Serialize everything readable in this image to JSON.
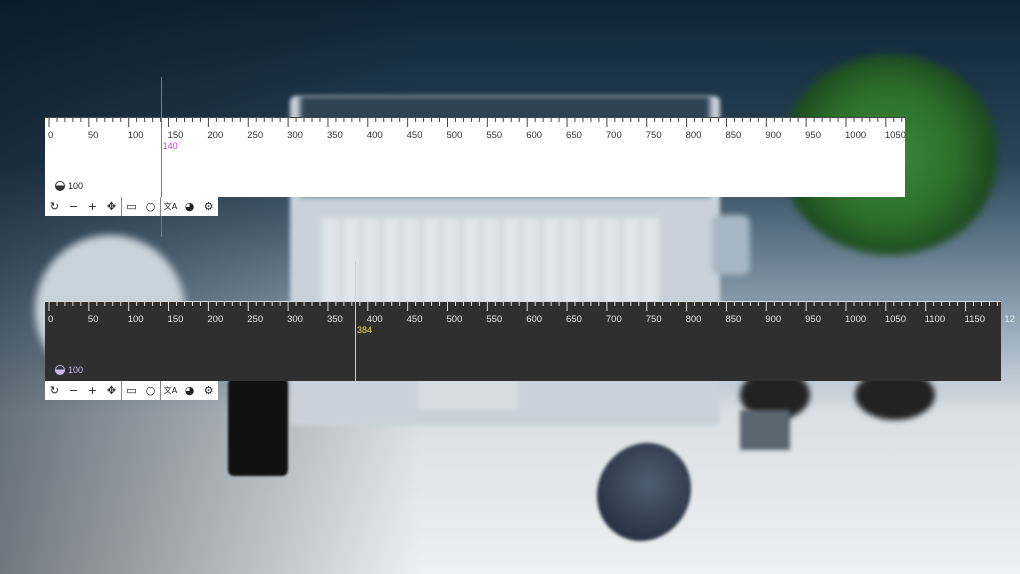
{
  "rulers": [
    {
      "theme": "light",
      "tick_labels": [
        "0",
        "50",
        "100",
        "150",
        "200",
        "250",
        "300",
        "350",
        "400",
        "450",
        "500",
        "550",
        "600",
        "650",
        "700",
        "750",
        "800",
        "850",
        "900",
        "950",
        "1000",
        "1050"
      ],
      "cursor_value": "140",
      "cursor_color": "#d43bd4",
      "opacity_value": "100"
    },
    {
      "theme": "dark",
      "tick_labels": [
        "0",
        "50",
        "100",
        "150",
        "200",
        "250",
        "300",
        "350",
        "400",
        "450",
        "500",
        "550",
        "600",
        "650",
        "700",
        "750",
        "800",
        "850",
        "900",
        "950",
        "1000",
        "1050",
        "1100",
        "1150",
        "12"
      ],
      "cursor_value": "384",
      "cursor_color": "#e0e04a",
      "opacity_value": "100"
    }
  ],
  "toolbar": {
    "buttons": [
      {
        "name": "rotate-icon",
        "glyph": "↻"
      },
      {
        "name": "minus-icon",
        "glyph": "−"
      },
      {
        "name": "plus-icon",
        "glyph": "+"
      },
      {
        "name": "move-icon",
        "glyph": "✥"
      },
      {
        "name": "ruler-icon",
        "glyph": "▭"
      },
      {
        "name": "circle-icon",
        "glyph": "○"
      },
      {
        "name": "translate-icon",
        "glyph": "文A"
      },
      {
        "name": "palette-icon",
        "glyph": "◕"
      },
      {
        "name": "settings-icon",
        "glyph": "⚙"
      }
    ]
  },
  "colors": {
    "light_bg": "#ffffff",
    "dark_bg": "#2f2f2f",
    "light_cursor": "#d43bd4",
    "dark_cursor": "#e0e04a"
  }
}
